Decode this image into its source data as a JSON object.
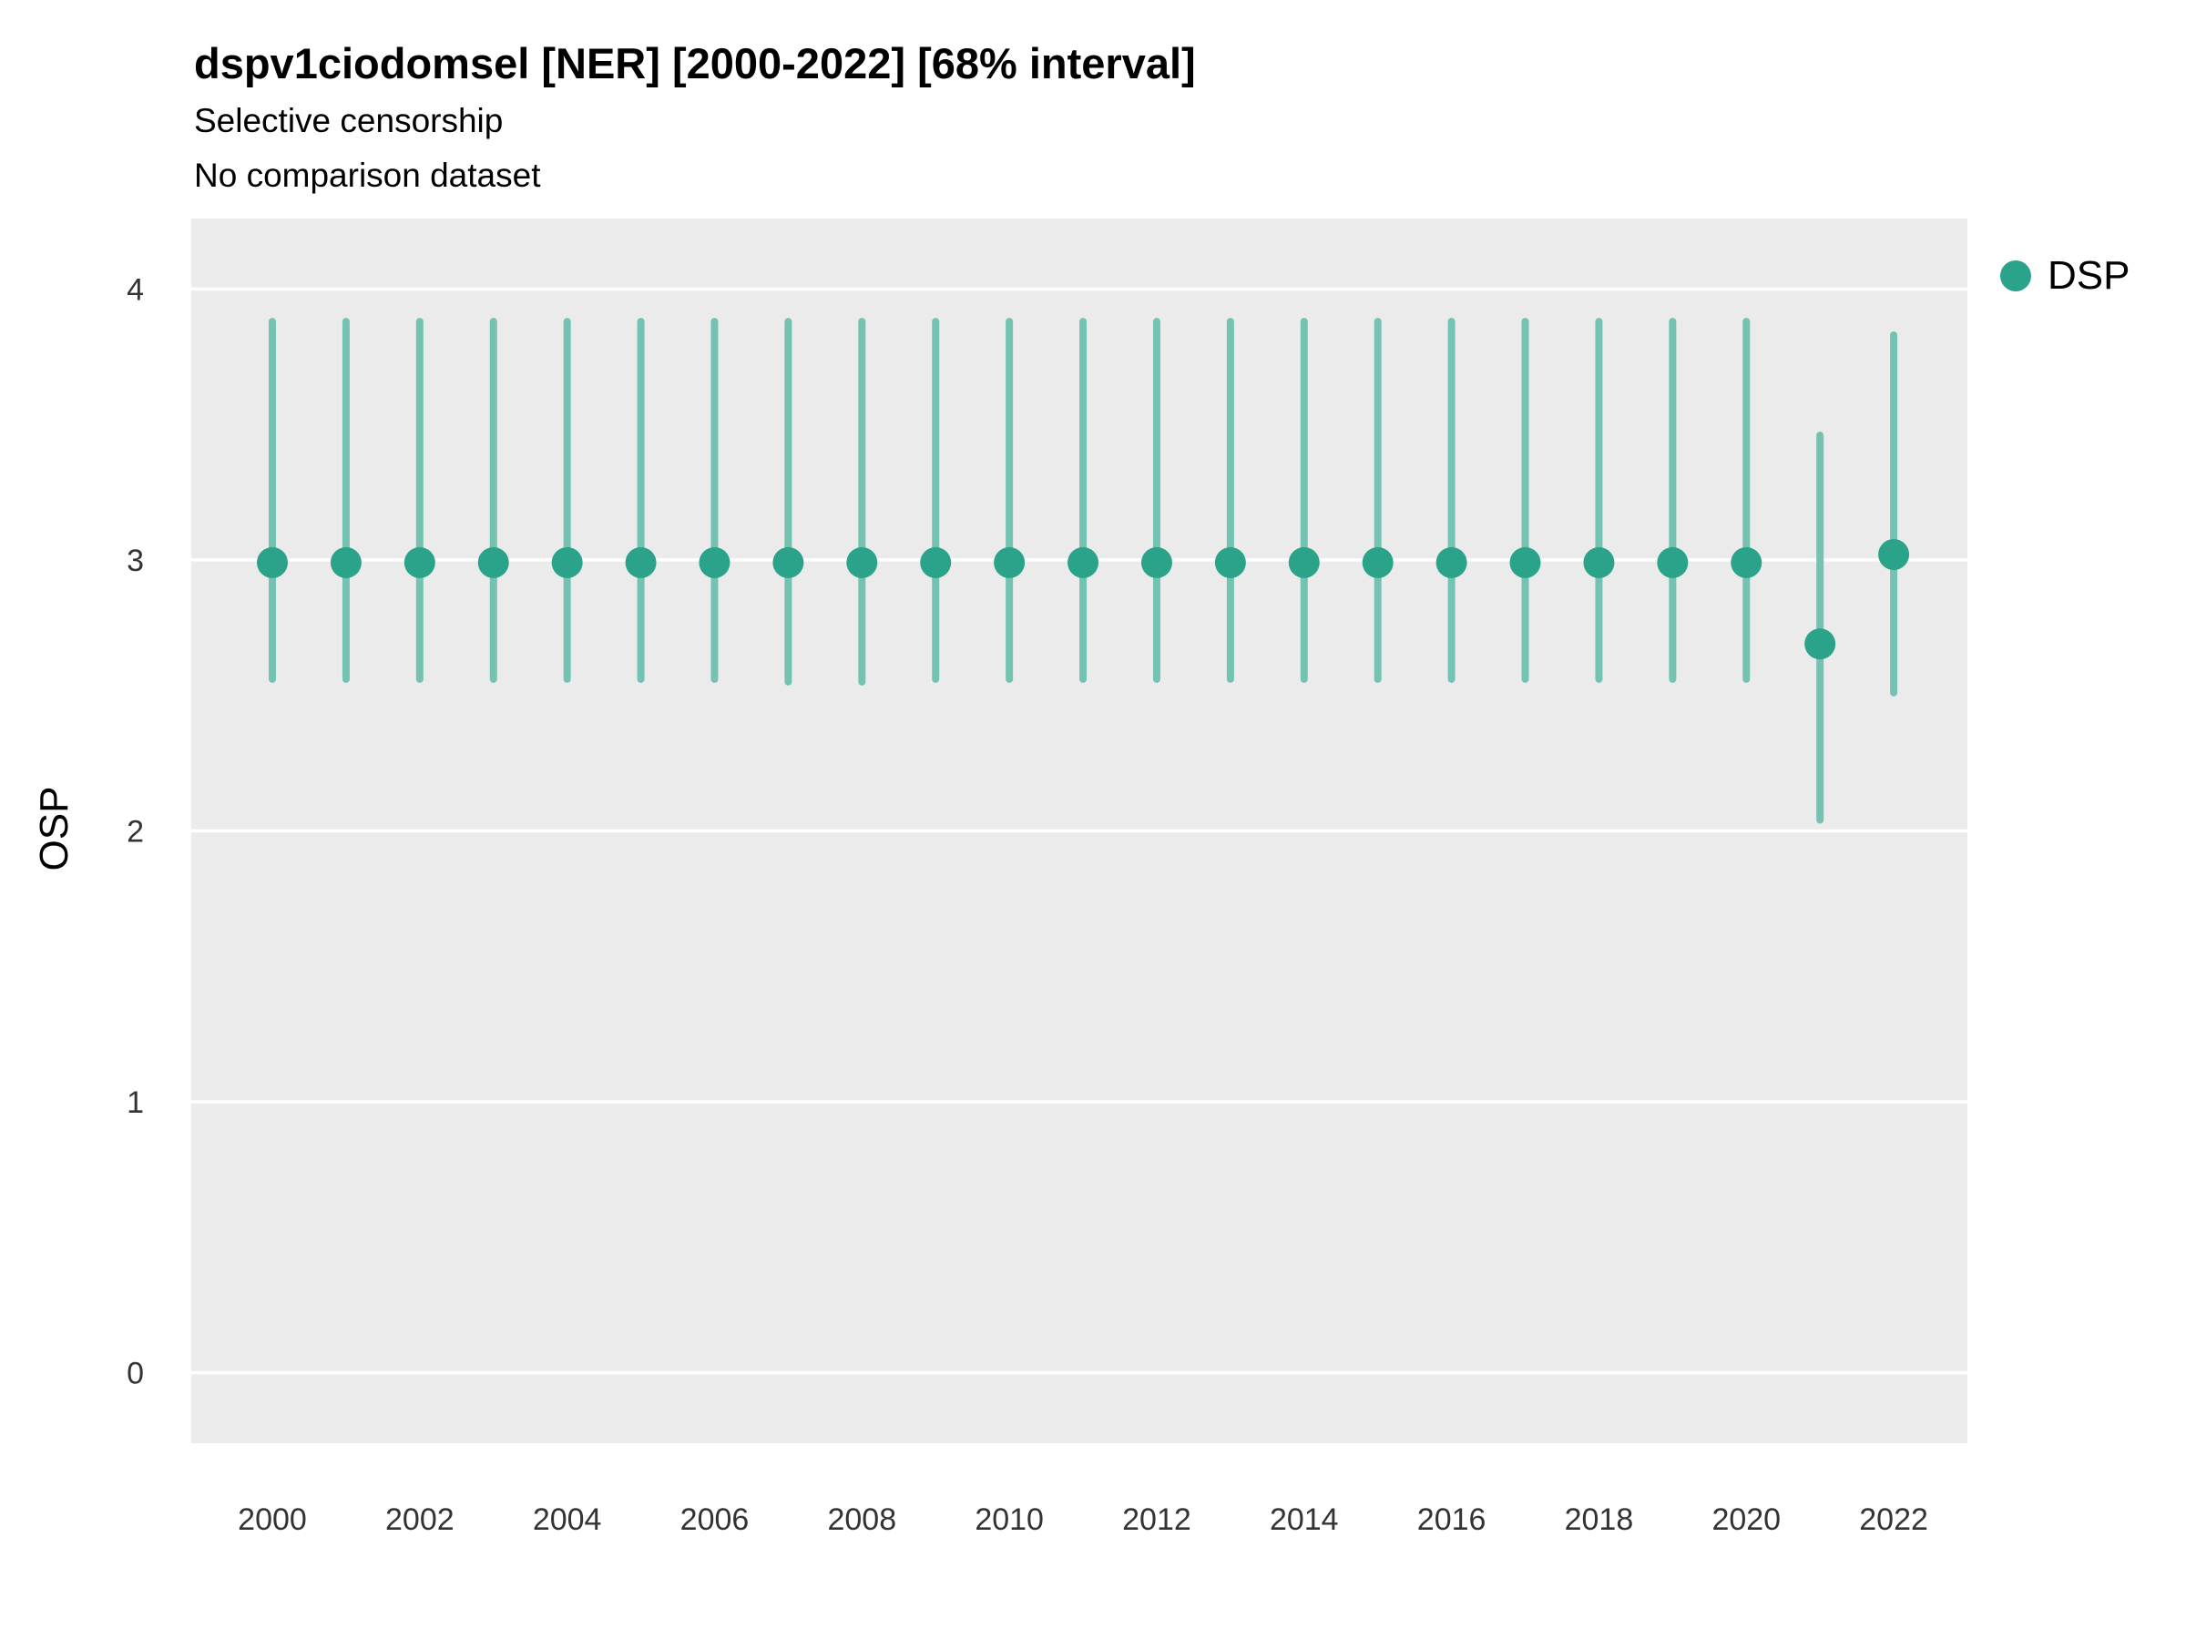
{
  "chart": {
    "title": "dspv1ciodomsel [NER] [2000-2022] [68% interval]",
    "subtitle1": "Selective censorship",
    "subtitle2": "No comparison dataset",
    "ylabel": "OSP",
    "legend": {
      "label": "DSP"
    }
  },
  "chart_data": {
    "type": "scatter",
    "title": "dspv1ciodomsel [NER] [2000-2022] [68% interval]",
    "subtitle": [
      "Selective censorship",
      "No comparison dataset"
    ],
    "xlabel": "",
    "ylabel": "OSP",
    "legend_position": "right",
    "grid": "horizontal-major",
    "xticks": [
      2000,
      2002,
      2004,
      2006,
      2008,
      2010,
      2012,
      2014,
      2016,
      2018,
      2020,
      2022
    ],
    "yticks": [
      0,
      1,
      2,
      3,
      4
    ],
    "xlim": [
      1998.9,
      2023.0
    ],
    "ylim": [
      -0.26,
      4.26
    ],
    "series": [
      {
        "name": "DSP",
        "x": [
          2000,
          2001,
          2002,
          2003,
          2004,
          2005,
          2006,
          2007,
          2008,
          2009,
          2010,
          2011,
          2012,
          2013,
          2014,
          2015,
          2016,
          2017,
          2018,
          2019,
          2020,
          2021,
          2022
        ],
        "y": [
          2.99,
          2.99,
          2.99,
          2.99,
          2.99,
          2.99,
          2.99,
          2.99,
          2.99,
          2.99,
          2.99,
          2.99,
          2.99,
          2.99,
          2.99,
          2.99,
          2.99,
          2.99,
          2.99,
          2.99,
          2.99,
          2.69,
          3.02
        ],
        "lower": [
          2.56,
          2.56,
          2.56,
          2.56,
          2.56,
          2.56,
          2.56,
          2.55,
          2.55,
          2.56,
          2.56,
          2.56,
          2.56,
          2.56,
          2.56,
          2.56,
          2.56,
          2.56,
          2.56,
          2.56,
          2.56,
          2.04,
          2.51
        ],
        "upper": [
          3.88,
          3.88,
          3.88,
          3.88,
          3.88,
          3.88,
          3.88,
          3.88,
          3.88,
          3.88,
          3.88,
          3.88,
          3.88,
          3.88,
          3.88,
          3.88,
          3.88,
          3.88,
          3.88,
          3.88,
          3.88,
          3.46,
          3.83
        ]
      }
    ],
    "colors": {
      "point": "#2aa38a",
      "interval": "#74c3b2",
      "panel": "#ebebeb",
      "grid": "#ffffff",
      "tick_text": "#333333"
    }
  }
}
